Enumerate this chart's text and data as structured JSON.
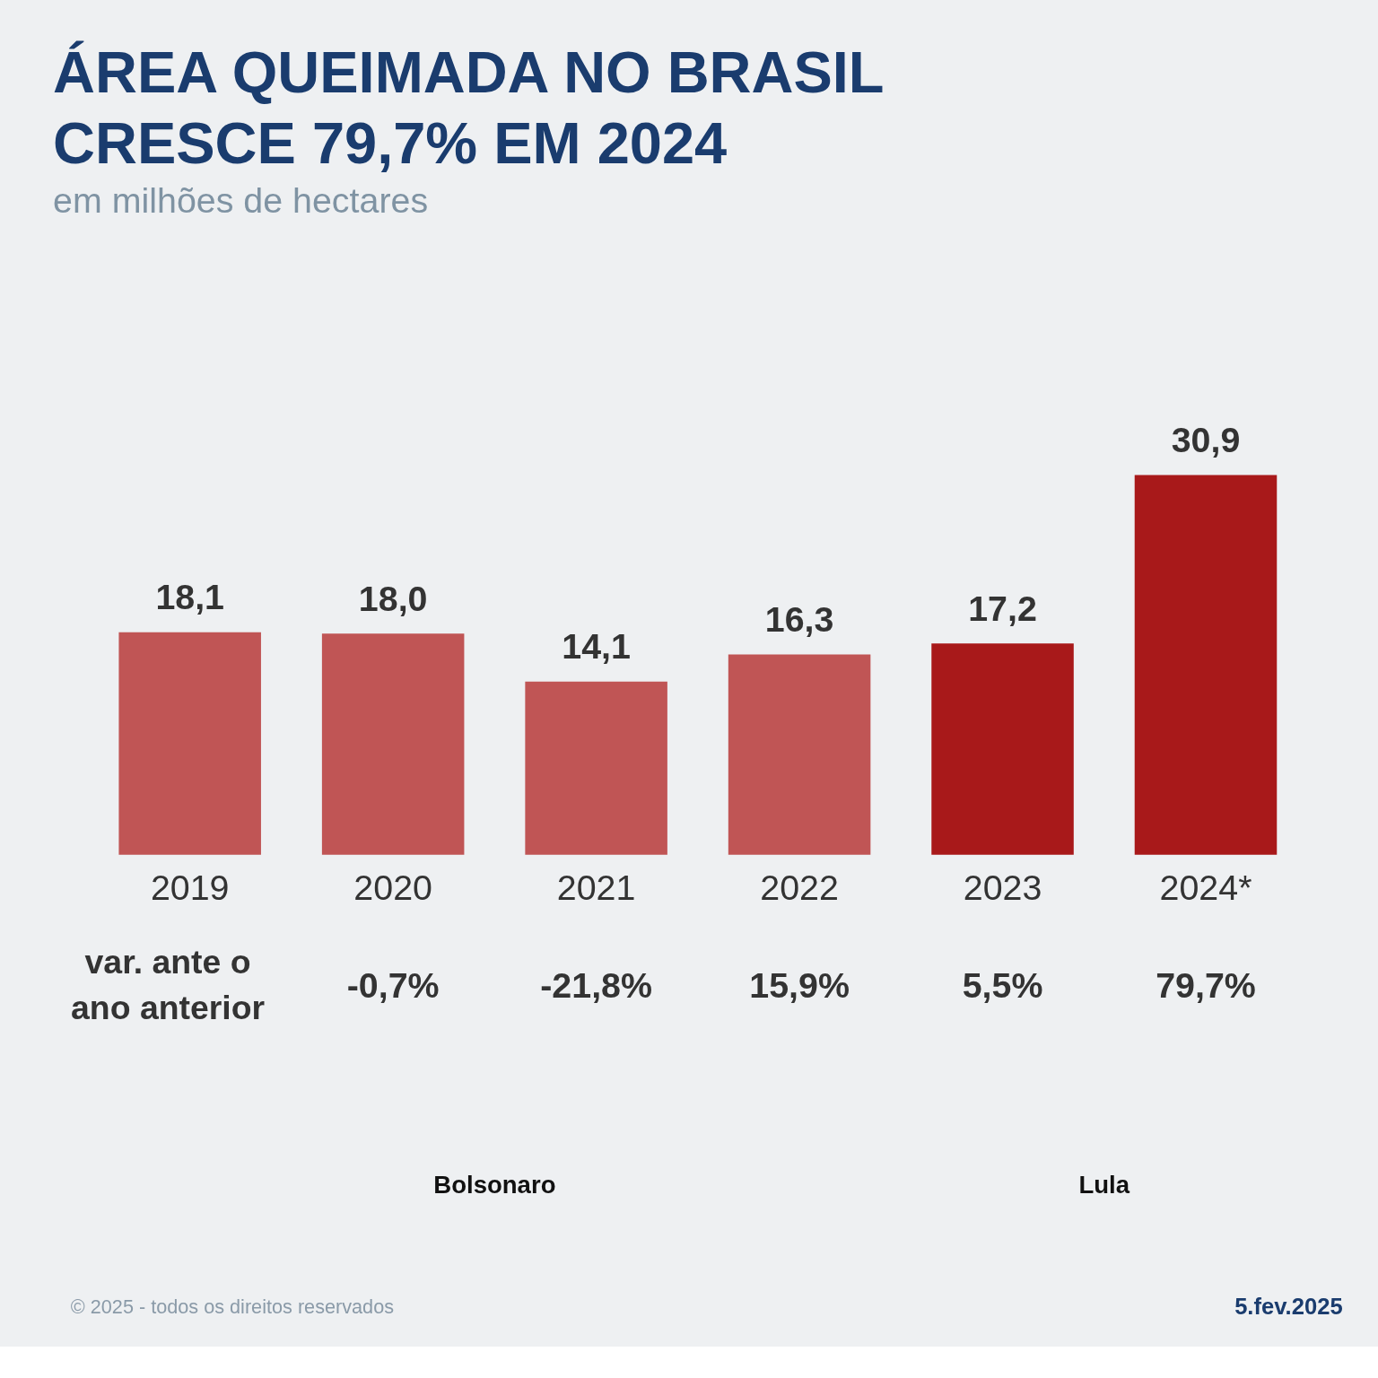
{
  "chart_data": {
    "type": "bar",
    "title": "ÁREA QUEIMADA NO BRASIL CRESCE 79,7% EM 2024",
    "subtitle": "em milhões de hectares",
    "categories": [
      "2019",
      "2020",
      "2021",
      "2022",
      "2023",
      "2024*"
    ],
    "values": [
      18.1,
      18.0,
      14.1,
      16.3,
      17.2,
      30.9
    ],
    "colors": [
      "#c05555",
      "#c05555",
      "#c05555",
      "#c05555",
      "#a8191a",
      "#a8191a"
    ],
    "value_labels": [
      "18,1",
      "18,0",
      "14,1",
      "16,3",
      "17,2",
      "30,9"
    ],
    "tick_labels": "x",
    "grid": false,
    "annotations": [
      "var. ante o ano anterior",
      "-0,7%",
      "-21,8%",
      "15,9%",
      "5,5%",
      "79,7%",
      "© 2025 - todos os direitos reservados",
      "5.fev.2025",
      "Bolsonaro",
      "Lula"
    ]
  }
}
